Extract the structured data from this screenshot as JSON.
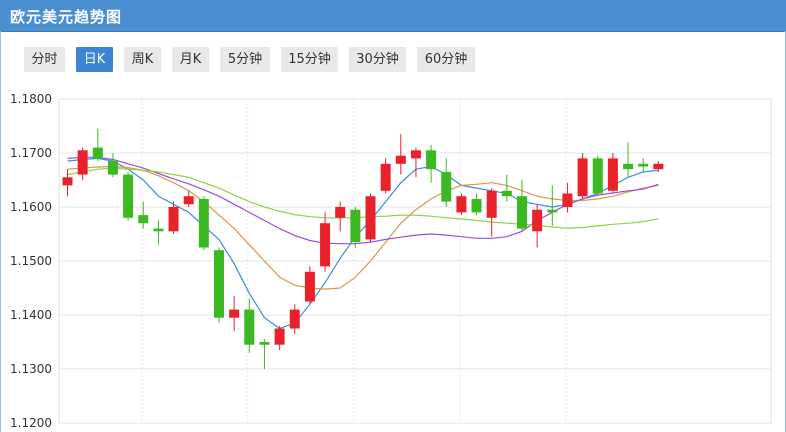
{
  "header": {
    "title": "欧元美元趋势图"
  },
  "tabs": [
    {
      "label": "分时",
      "active": false
    },
    {
      "label": "日K",
      "active": true
    },
    {
      "label": "周K",
      "active": false
    },
    {
      "label": "月K",
      "active": false
    },
    {
      "label": "5分钟",
      "active": false
    },
    {
      "label": "15分钟",
      "active": false
    },
    {
      "label": "30分钟",
      "active": false
    },
    {
      "label": "60分钟",
      "active": false
    }
  ],
  "colors": {
    "up": "#e8222b",
    "down": "#3cb822",
    "ma5": "#3a8ee0",
    "ma10": "#d49a4a",
    "ma20": "#9b4fd6",
    "ma60": "#8fd04a"
  },
  "chart_data": {
    "type": "candlestick",
    "ylim": [
      1.12,
      1.18
    ],
    "yticks": [
      "1.1200",
      "1.1300",
      "1.1400",
      "1.1500",
      "1.1600",
      "1.1700",
      "1.1800"
    ],
    "grid": true,
    "candles": [
      {
        "o": 1.164,
        "c": 1.1655,
        "h": 1.167,
        "l": 1.162
      },
      {
        "o": 1.166,
        "c": 1.1705,
        "h": 1.171,
        "l": 1.165
      },
      {
        "o": 1.171,
        "c": 1.169,
        "h": 1.1745,
        "l": 1.1685
      },
      {
        "o": 1.1685,
        "c": 1.166,
        "h": 1.17,
        "l": 1.1655
      },
      {
        "o": 1.166,
        "c": 1.158,
        "h": 1.1665,
        "l": 1.1575
      },
      {
        "o": 1.1585,
        "c": 1.157,
        "h": 1.161,
        "l": 1.156
      },
      {
        "o": 1.156,
        "c": 1.1555,
        "h": 1.1575,
        "l": 1.153
      },
      {
        "o": 1.1555,
        "c": 1.16,
        "h": 1.161,
        "l": 1.155
      },
      {
        "o": 1.1605,
        "c": 1.162,
        "h": 1.163,
        "l": 1.16
      },
      {
        "o": 1.1615,
        "c": 1.1525,
        "h": 1.162,
        "l": 1.152
      },
      {
        "o": 1.152,
        "c": 1.1395,
        "h": 1.1525,
        "l": 1.1385
      },
      {
        "o": 1.1395,
        "c": 1.141,
        "h": 1.1435,
        "l": 1.137
      },
      {
        "o": 1.141,
        "c": 1.1345,
        "h": 1.143,
        "l": 1.133
      },
      {
        "o": 1.135,
        "c": 1.1345,
        "h": 1.1355,
        "l": 1.13
      },
      {
        "o": 1.1345,
        "c": 1.1375,
        "h": 1.138,
        "l": 1.1335
      },
      {
        "o": 1.1375,
        "c": 1.141,
        "h": 1.142,
        "l": 1.1365
      },
      {
        "o": 1.1425,
        "c": 1.148,
        "h": 1.149,
        "l": 1.142
      },
      {
        "o": 1.149,
        "c": 1.157,
        "h": 1.159,
        "l": 1.148
      },
      {
        "o": 1.158,
        "c": 1.16,
        "h": 1.161,
        "l": 1.1555
      },
      {
        "o": 1.1595,
        "c": 1.1535,
        "h": 1.16,
        "l": 1.1525
      },
      {
        "o": 1.154,
        "c": 1.162,
        "h": 1.1625,
        "l": 1.1535
      },
      {
        "o": 1.163,
        "c": 1.168,
        "h": 1.169,
        "l": 1.1625
      },
      {
        "o": 1.168,
        "c": 1.1695,
        "h": 1.1735,
        "l": 1.166
      },
      {
        "o": 1.169,
        "c": 1.1705,
        "h": 1.171,
        "l": 1.1655
      },
      {
        "o": 1.1705,
        "c": 1.167,
        "h": 1.1715,
        "l": 1.1645
      },
      {
        "o": 1.1665,
        "c": 1.161,
        "h": 1.169,
        "l": 1.16
      },
      {
        "o": 1.159,
        "c": 1.162,
        "h": 1.1625,
        "l": 1.1585
      },
      {
        "o": 1.1615,
        "c": 1.159,
        "h": 1.1625,
        "l": 1.1585
      },
      {
        "o": 1.158,
        "c": 1.163,
        "h": 1.1635,
        "l": 1.1545
      },
      {
        "o": 1.163,
        "c": 1.162,
        "h": 1.166,
        "l": 1.161
      },
      {
        "o": 1.162,
        "c": 1.156,
        "h": 1.165,
        "l": 1.1555
      },
      {
        "o": 1.1555,
        "c": 1.1595,
        "h": 1.1605,
        "l": 1.1525
      },
      {
        "o": 1.1595,
        "c": 1.159,
        "h": 1.164,
        "l": 1.1565
      },
      {
        "o": 1.16,
        "c": 1.1625,
        "h": 1.1645,
        "l": 1.159
      },
      {
        "o": 1.162,
        "c": 1.169,
        "h": 1.17,
        "l": 1.1615
      },
      {
        "o": 1.169,
        "c": 1.1625,
        "h": 1.1695,
        "l": 1.162
      },
      {
        "o": 1.163,
        "c": 1.169,
        "h": 1.17,
        "l": 1.1625
      },
      {
        "o": 1.168,
        "c": 1.167,
        "h": 1.172,
        "l": 1.1655
      },
      {
        "o": 1.168,
        "c": 1.1675,
        "h": 1.169,
        "l": 1.1665
      },
      {
        "o": 1.167,
        "c": 1.168,
        "h": 1.1685,
        "l": 1.1665
      }
    ],
    "ma_lines": [
      {
        "key": "ma5",
        "values": [
          1.1685,
          1.1688,
          1.169,
          1.1685,
          1.167,
          1.165,
          1.162,
          1.1605,
          1.159,
          1.1565,
          1.154,
          1.1495,
          1.144,
          1.1395,
          1.1375,
          1.1385,
          1.142,
          1.146,
          1.1505,
          1.1545,
          1.1575,
          1.161,
          1.1645,
          1.167,
          1.1675,
          1.166,
          1.164,
          1.1635,
          1.163,
          1.1625,
          1.161,
          1.1605,
          1.16,
          1.1605,
          1.1615,
          1.1625,
          1.164,
          1.1655,
          1.1665,
          1.1668
        ]
      },
      {
        "key": "ma10",
        "values": [
          1.167,
          1.1672,
          1.1674,
          1.1675,
          1.1673,
          1.1668,
          1.1658,
          1.1645,
          1.163,
          1.161,
          1.1585,
          1.156,
          1.153,
          1.15,
          1.147,
          1.1455,
          1.145,
          1.1448,
          1.145,
          1.147,
          1.15,
          1.1535,
          1.157,
          1.1595,
          1.1615,
          1.163,
          1.164,
          1.1642,
          1.1645,
          1.164,
          1.163,
          1.162,
          1.1615,
          1.1612,
          1.1612,
          1.1615,
          1.162,
          1.1628,
          1.1635,
          1.164
        ]
      },
      {
        "key": "ma20",
        "values": [
          1.169,
          1.1692,
          1.1692,
          1.1688,
          1.168,
          1.1672,
          1.1662,
          1.1652,
          1.1643,
          1.1632,
          1.162,
          1.1605,
          1.159,
          1.1575,
          1.156,
          1.1547,
          1.1538,
          1.1533,
          1.1532,
          1.1532,
          1.1535,
          1.154,
          1.1544,
          1.1548,
          1.155,
          1.1548,
          1.1545,
          1.1542,
          1.1542,
          1.1545,
          1.1555,
          1.1575,
          1.159,
          1.1605,
          1.1615,
          1.1622,
          1.1626,
          1.163,
          1.1633,
          1.1642
        ]
      },
      {
        "key": "ma60",
        "values": [
          1.166,
          1.1665,
          1.167,
          1.1672,
          1.167,
          1.1668,
          1.1665,
          1.166,
          1.1655,
          1.1645,
          1.1635,
          1.1622,
          1.161,
          1.16,
          1.1592,
          1.1586,
          1.1582,
          1.158,
          1.158,
          1.158,
          1.1582,
          1.1583,
          1.1585,
          1.1585,
          1.1583,
          1.158,
          1.1578,
          1.1575,
          1.1572,
          1.157,
          1.1568,
          1.1566,
          1.1563,
          1.1561,
          1.1562,
          1.1565,
          1.1568,
          1.157,
          1.1573,
          1.1578
        ]
      }
    ]
  }
}
